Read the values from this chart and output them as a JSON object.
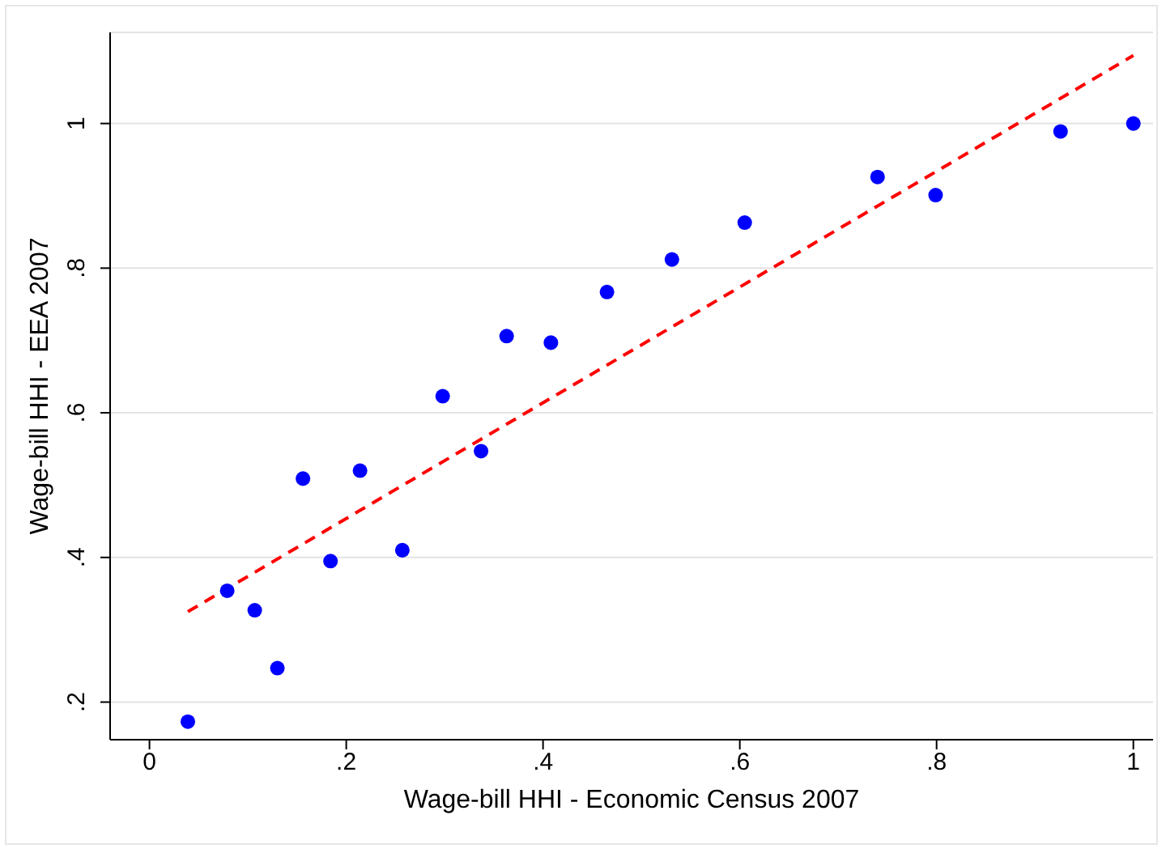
{
  "chart_data": {
    "type": "scatter",
    "xlabel": "Wage-bill HHI - Economic Census 2007",
    "ylabel": "Wage-bill HHI - EEA 2007",
    "xlim": [
      -0.04,
      1.02
    ],
    "ylim": [
      0.148,
      1.126
    ],
    "xticks": [
      0,
      {
        "value": 0.2,
        "label": ".2"
      },
      {
        "value": 0.4,
        "label": ".4"
      },
      {
        "value": 0.6,
        "label": ".6"
      },
      {
        "value": 0.8,
        "label": ".8"
      },
      1
    ],
    "yticks": [
      {
        "value": 0.2,
        "label": ".2"
      },
      {
        "value": 0.4,
        "label": ".4"
      },
      {
        "value": 0.6,
        "label": ".6"
      },
      {
        "value": 0.8,
        "label": ".8"
      },
      1
    ],
    "grid": "y",
    "legend": false,
    "series": [
      {
        "color": "#0000ff",
        "marker": "circle",
        "x": [
          0.039,
          0.079,
          0.107,
          0.13,
          0.156,
          0.184,
          0.214,
          0.257,
          0.298,
          0.337,
          0.363,
          0.408,
          0.465,
          0.531,
          0.605,
          0.74,
          0.799,
          0.926,
          1.0
        ],
        "values": [
          0.173,
          0.354,
          0.327,
          0.247,
          0.509,
          0.395,
          0.52,
          0.41,
          0.623,
          0.547,
          0.706,
          0.697,
          0.767,
          0.812,
          0.863,
          0.926,
          0.901,
          0.989,
          1.0
        ]
      },
      {
        "type": "line",
        "color": "#ff0000",
        "line_style": "dashed",
        "marker": "none",
        "x": [
          0.039,
          1.0
        ],
        "values": [
          0.325,
          1.094
        ]
      }
    ]
  }
}
